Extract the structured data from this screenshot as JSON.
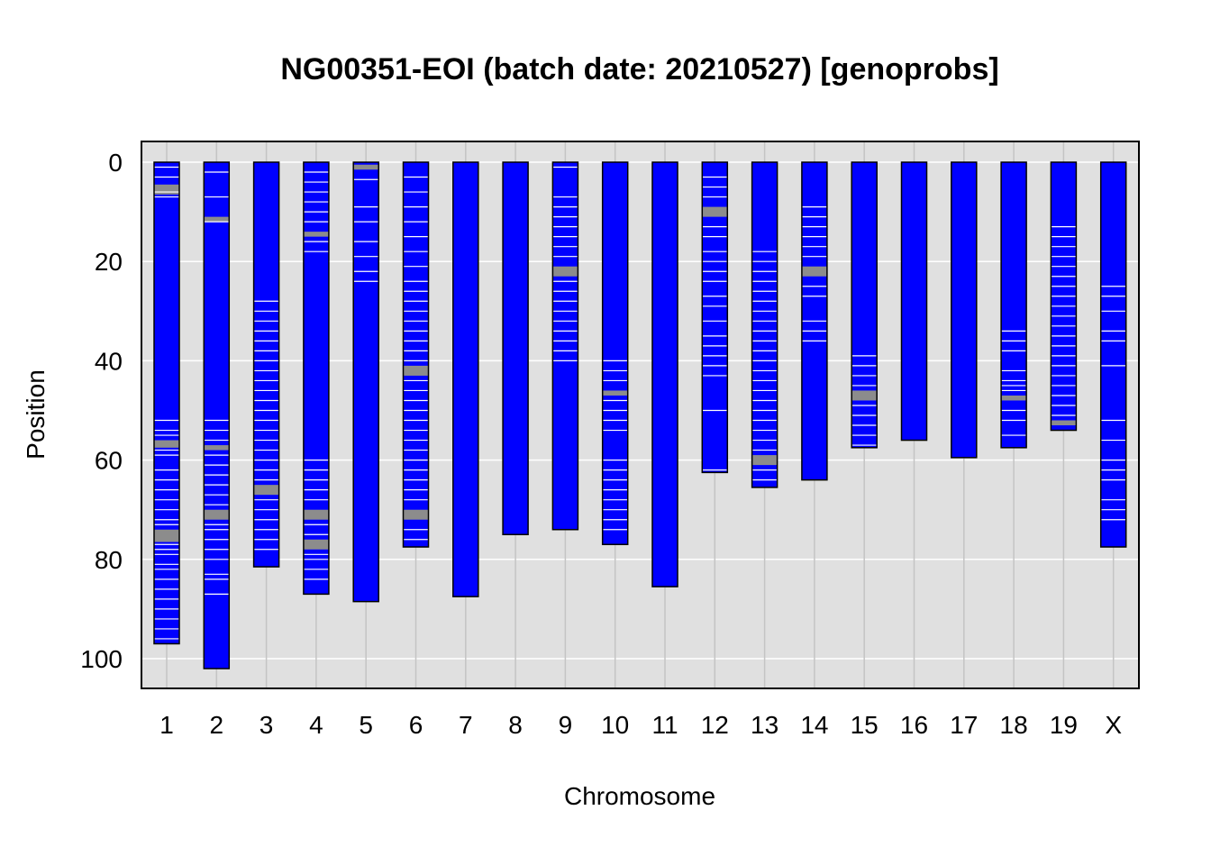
{
  "chart_data": {
    "type": "genotype-map",
    "title": "NG00351-EOI (batch date: 20210527) [genoprobs]",
    "xlabel": "Chromosome",
    "ylabel": "Position",
    "ylim": [
      106,
      -4
    ],
    "yticks": [
      0,
      20,
      40,
      60,
      80,
      100
    ],
    "colors": {
      "background": "#e0e0e0",
      "gridline": "#ffffff",
      "chromosome_fill": "#0000ff",
      "chromosome_border": "#000000",
      "marker_white": "#ffffff",
      "marker_gray": "#8c8c8c"
    },
    "chromosomes": [
      {
        "name": "1",
        "length": 97,
        "gray_bands": [
          [
            4.5,
            6.5
          ],
          [
            56,
            57.5
          ],
          [
            74,
            76.5
          ]
        ],
        "markers": [
          1,
          3,
          6,
          7,
          52,
          54,
          55,
          58,
          59,
          62,
          64,
          66,
          68,
          70,
          72,
          73,
          77,
          78,
          79,
          81,
          82,
          84,
          86,
          88,
          90,
          92,
          94,
          96
        ]
      },
      {
        "name": "2",
        "length": 102,
        "gray_bands": [
          [
            11,
            12
          ],
          [
            57,
            58
          ],
          [
            70,
            72
          ]
        ],
        "markers": [
          2,
          7,
          12,
          52,
          54,
          56,
          59,
          61,
          63,
          65,
          67,
          69,
          73,
          74,
          76,
          78,
          80,
          83,
          84,
          87
        ]
      },
      {
        "name": "3",
        "length": 81.5,
        "gray_bands": [
          [
            65,
            67
          ]
        ],
        "markers": [
          28,
          30,
          32,
          34,
          36,
          38,
          40,
          42,
          44,
          46,
          48,
          50,
          52,
          54,
          56,
          58,
          60,
          62,
          64,
          68,
          70,
          72,
          74,
          76,
          78
        ]
      },
      {
        "name": "4",
        "length": 87,
        "gray_bands": [
          [
            14,
            15
          ],
          [
            70,
            72
          ],
          [
            76,
            78
          ]
        ],
        "markers": [
          2,
          4,
          6,
          8,
          10,
          12,
          16,
          18,
          60,
          62,
          64,
          66,
          68,
          73,
          75,
          79,
          80,
          82,
          84
        ]
      },
      {
        "name": "5",
        "length": 88.5,
        "gray_bands": [
          [
            0.5,
            1.5
          ]
        ],
        "markers": [
          3.5,
          9,
          12,
          16,
          19,
          22,
          24
        ]
      },
      {
        "name": "6",
        "length": 77.5,
        "gray_bands": [
          [
            41,
            43
          ],
          [
            70,
            72
          ]
        ],
        "markers": [
          3,
          6,
          9,
          12,
          15,
          18,
          21,
          24,
          26,
          28,
          30,
          32,
          34,
          36,
          38,
          40,
          44,
          46,
          48,
          50,
          52,
          54,
          56,
          58,
          60,
          62,
          64,
          66,
          68,
          74,
          76
        ]
      },
      {
        "name": "7",
        "length": 87.5,
        "gray_bands": [],
        "markers": []
      },
      {
        "name": "8",
        "length": 75,
        "gray_bands": [],
        "markers": []
      },
      {
        "name": "9",
        "length": 74,
        "gray_bands": [
          [
            21,
            23
          ]
        ],
        "markers": [
          1,
          7,
          9,
          11,
          13,
          15,
          17,
          19,
          24,
          26,
          28,
          30,
          32,
          34,
          36,
          38,
          40
        ]
      },
      {
        "name": "10",
        "length": 77,
        "gray_bands": [
          [
            46,
            47
          ]
        ],
        "markers": [
          40,
          42,
          44,
          48,
          50,
          52,
          54,
          60,
          62,
          64,
          66,
          68,
          70,
          72,
          74
        ]
      },
      {
        "name": "11",
        "length": 85.5,
        "gray_bands": [],
        "markers": []
      },
      {
        "name": "12",
        "length": 62.5,
        "gray_bands": [
          [
            9,
            11
          ]
        ],
        "markers": [
          3,
          5,
          7,
          13,
          15,
          18,
          20,
          22,
          24,
          27,
          29,
          32,
          35,
          37,
          39,
          41,
          43,
          50,
          62
        ]
      },
      {
        "name": "13",
        "length": 65.5,
        "gray_bands": [
          [
            59,
            61
          ]
        ],
        "markers": [
          18,
          20,
          22,
          24,
          26,
          28,
          30,
          32,
          34,
          36,
          38,
          40,
          42,
          44,
          46,
          48,
          50,
          52,
          54,
          56,
          58,
          62,
          64
        ]
      },
      {
        "name": "14",
        "length": 64,
        "gray_bands": [
          [
            21,
            23
          ]
        ],
        "markers": [
          9,
          11,
          13,
          15,
          17,
          19,
          25,
          27,
          32,
          34,
          36
        ]
      },
      {
        "name": "15",
        "length": 57.5,
        "gray_bands": [
          [
            46,
            48
          ]
        ],
        "markers": [
          39,
          41,
          43,
          45,
          49,
          51,
          53,
          55,
          57
        ]
      },
      {
        "name": "16",
        "length": 56,
        "gray_bands": [],
        "markers": []
      },
      {
        "name": "17",
        "length": 59.5,
        "gray_bands": [],
        "markers": []
      },
      {
        "name": "18",
        "length": 57.5,
        "gray_bands": [
          [
            47,
            48
          ]
        ],
        "markers": [
          34,
          36,
          38,
          42,
          44,
          45,
          46,
          50,
          52,
          55
        ]
      },
      {
        "name": "19",
        "length": 54,
        "gray_bands": [
          [
            52,
            53
          ]
        ],
        "markers": [
          13,
          15,
          17,
          19,
          21,
          23,
          25,
          27,
          29,
          31,
          33,
          35,
          37,
          39,
          41,
          43,
          45,
          47,
          49,
          51
        ]
      },
      {
        "name": "X",
        "length": 77.5,
        "gray_bands": [],
        "markers": [
          25,
          27,
          30,
          34,
          36,
          41,
          52,
          56,
          60,
          62,
          64,
          68,
          70,
          72
        ]
      }
    ]
  }
}
